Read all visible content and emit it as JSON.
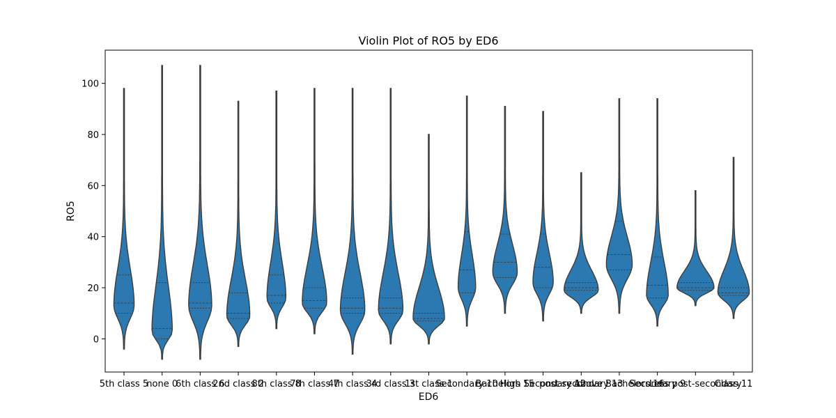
{
  "chart_data": {
    "type": "violin",
    "title": "Violin Plot of RO5 by ED6",
    "xlabel": "ED6",
    "ylabel": "RO5",
    "ylim": [
      -13,
      113
    ],
    "yticks": [
      0,
      20,
      40,
      60,
      80,
      100
    ],
    "grid": false,
    "color": "#2c78b0",
    "categories": [
      "5th class 5",
      "none 0",
      "6th class 6",
      "2nd class 2",
      "8th class 8",
      "7th class 7",
      "4th class 4",
      "3rd class 3",
      "1st class 1",
      "Secondary 10",
      "Bachelors 15",
      "High Secondary 12",
      "post secondary 13",
      "Above Bachelors 16",
      "Secondary 9",
      "Less post-secondary",
      "Class 11"
    ],
    "violins": [
      {
        "min": -4,
        "max": 98,
        "q1": 10,
        "median": 14,
        "q3": 25,
        "mode": 13,
        "halfwidth": 14
      },
      {
        "min": -8,
        "max": 107,
        "q1": 0,
        "median": 4,
        "q3": 22,
        "mode": 3,
        "halfwidth": 14
      },
      {
        "min": -8,
        "max": 107,
        "q1": 12,
        "median": 14,
        "q3": 22,
        "mode": 13,
        "halfwidth": 16
      },
      {
        "min": -3,
        "max": 93,
        "q1": 8,
        "median": 10,
        "q3": 18,
        "mode": 9,
        "halfwidth": 16
      },
      {
        "min": 4,
        "max": 97,
        "q1": 14,
        "median": 17,
        "q3": 25,
        "mode": 16,
        "halfwidth": 13
      },
      {
        "min": 2,
        "max": 98,
        "q1": 12,
        "median": 15,
        "q3": 20,
        "mode": 14,
        "halfwidth": 17
      },
      {
        "min": -6,
        "max": 98,
        "q1": 10,
        "median": 12,
        "q3": 16,
        "mode": 11,
        "halfwidth": 17
      },
      {
        "min": -2,
        "max": 98,
        "q1": 10,
        "median": 12,
        "q3": 16,
        "mode": 11,
        "halfwidth": 17
      },
      {
        "min": -2,
        "max": 80,
        "q1": 7,
        "median": 8,
        "q3": 10,
        "mode": 8,
        "halfwidth": 22
      },
      {
        "min": 5,
        "max": 95,
        "q1": 18,
        "median": 27,
        "q3": 42,
        "mode": 20,
        "halfwidth": 12
      },
      {
        "min": 10,
        "max": 91,
        "q1": 24,
        "median": 30,
        "q3": 41,
        "mode": 26,
        "halfwidth": 17
      },
      {
        "min": 7,
        "max": 89,
        "q1": 20,
        "median": 28,
        "q3": 41,
        "mode": 22,
        "halfwidth": 14
      },
      {
        "min": 10,
        "max": 65,
        "q1": 19,
        "median": 20,
        "q3": 22,
        "mode": 19,
        "halfwidth": 24
      },
      {
        "min": 10,
        "max": 94,
        "q1": 27,
        "median": 33,
        "q3": 46,
        "mode": 29,
        "halfwidth": 18
      },
      {
        "min": 5,
        "max": 94,
        "q1": 16,
        "median": 21,
        "q3": 32,
        "mode": 17,
        "halfwidth": 15
      },
      {
        "min": 13,
        "max": 58,
        "q1": 19,
        "median": 20,
        "q3": 22,
        "mode": 20,
        "halfwidth": 26
      },
      {
        "min": 8,
        "max": 71,
        "q1": 17,
        "median": 18,
        "q3": 20,
        "mode": 18,
        "halfwidth": 22
      }
    ]
  }
}
